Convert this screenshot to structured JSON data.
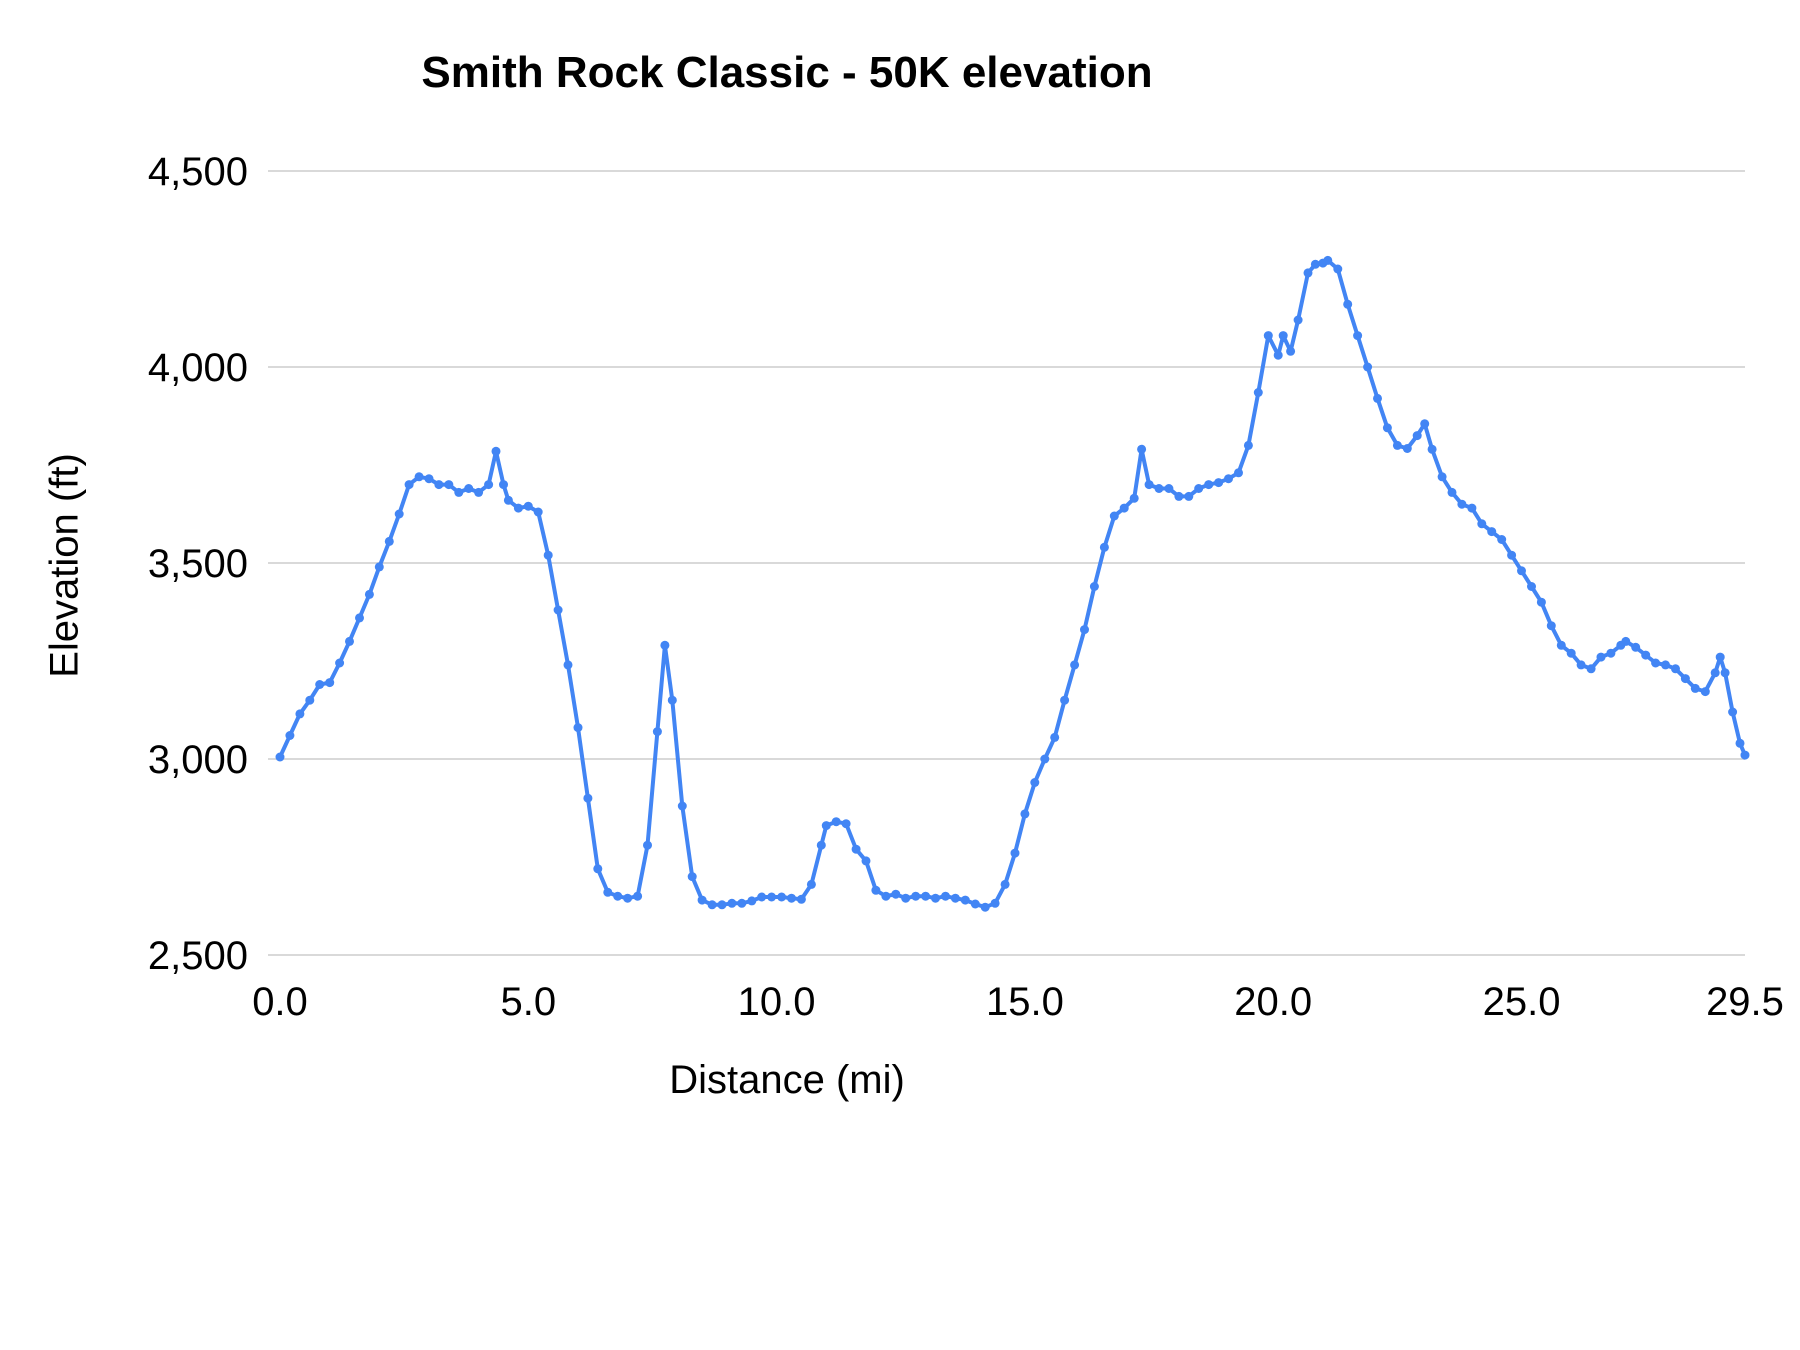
{
  "chart": {
    "title": "Smith Rock Classic - 50K elevation",
    "xlabel": "Distance (mi)",
    "ylabel": "Elevation (ft)"
  },
  "chart_data": {
    "type": "line",
    "title": "Smith Rock Classic - 50K elevation",
    "xlabel": "Distance (mi)",
    "ylabel": "Elevation (ft)",
    "xlim": [
      0,
      29.5
    ],
    "ylim": [
      2500,
      4500
    ],
    "grid": "horizontal",
    "grid_color": "#d9d9d9",
    "background_color": "#ffffff",
    "x_ticks": [
      0,
      5,
      10,
      15,
      20,
      25,
      29.5
    ],
    "x_tick_labels": [
      "0.0",
      "5.0",
      "10.0",
      "15.0",
      "20.0",
      "25.0",
      "29.5"
    ],
    "y_ticks": [
      2500,
      3000,
      3500,
      4000,
      4500
    ],
    "y_tick_labels": [
      "2,500",
      "3,000",
      "3,500",
      "4,000",
      "4,500"
    ],
    "series": [
      {
        "name": "elevation",
        "color": "#4285f4",
        "marker": "circle",
        "x": [
          0.0,
          0.2,
          0.4,
          0.6,
          0.8,
          1.0,
          1.2,
          1.4,
          1.6,
          1.8,
          2.0,
          2.2,
          2.4,
          2.6,
          2.8,
          3.0,
          3.2,
          3.4,
          3.6,
          3.8,
          4.0,
          4.2,
          4.35,
          4.5,
          4.6,
          4.8,
          5.0,
          5.2,
          5.4,
          5.6,
          5.8,
          6.0,
          6.2,
          6.4,
          6.6,
          6.8,
          7.0,
          7.2,
          7.4,
          7.6,
          7.75,
          7.9,
          8.1,
          8.3,
          8.5,
          8.7,
          8.9,
          9.1,
          9.3,
          9.5,
          9.7,
          9.9,
          10.1,
          10.3,
          10.5,
          10.7,
          10.9,
          11.0,
          11.2,
          11.4,
          11.6,
          11.8,
          12.0,
          12.2,
          12.4,
          12.6,
          12.8,
          13.0,
          13.2,
          13.4,
          13.6,
          13.8,
          14.0,
          14.2,
          14.4,
          14.6,
          14.8,
          15.0,
          15.2,
          15.4,
          15.6,
          15.8,
          16.0,
          16.2,
          16.4,
          16.6,
          16.8,
          17.0,
          17.2,
          17.35,
          17.5,
          17.7,
          17.9,
          18.1,
          18.3,
          18.5,
          18.7,
          18.9,
          19.1,
          19.3,
          19.5,
          19.7,
          19.9,
          20.1,
          20.2,
          20.35,
          20.5,
          20.7,
          20.85,
          21.0,
          21.1,
          21.3,
          21.5,
          21.7,
          21.9,
          22.1,
          22.3,
          22.5,
          22.7,
          22.9,
          23.05,
          23.2,
          23.4,
          23.6,
          23.8,
          24.0,
          24.2,
          24.4,
          24.6,
          24.8,
          25.0,
          25.2,
          25.4,
          25.6,
          25.8,
          26.0,
          26.2,
          26.4,
          26.6,
          26.8,
          27.0,
          27.1,
          27.3,
          27.5,
          27.7,
          27.9,
          28.1,
          28.3,
          28.5,
          28.7,
          28.9,
          29.0,
          29.1,
          29.25,
          29.4,
          29.5
        ],
        "y": [
          3005,
          3060,
          3115,
          3150,
          3190,
          3195,
          3245,
          3300,
          3360,
          3420,
          3490,
          3555,
          3625,
          3700,
          3720,
          3715,
          3700,
          3700,
          3680,
          3690,
          3680,
          3700,
          3785,
          3700,
          3660,
          3640,
          3645,
          3630,
          3520,
          3380,
          3240,
          3080,
          2900,
          2720,
          2660,
          2650,
          2645,
          2650,
          2780,
          3070,
          3290,
          3150,
          2880,
          2700,
          2640,
          2628,
          2628,
          2632,
          2632,
          2638,
          2648,
          2648,
          2648,
          2645,
          2642,
          2680,
          2780,
          2830,
          2840,
          2835,
          2770,
          2740,
          2665,
          2650,
          2655,
          2645,
          2650,
          2650,
          2645,
          2650,
          2645,
          2640,
          2630,
          2622,
          2632,
          2680,
          2760,
          2860,
          2940,
          3000,
          3055,
          3150,
          3240,
          3330,
          3440,
          3540,
          3620,
          3640,
          3665,
          3790,
          3700,
          3690,
          3690,
          3670,
          3670,
          3690,
          3700,
          3705,
          3715,
          3730,
          3800,
          3935,
          4080,
          4030,
          4080,
          4040,
          4120,
          4240,
          4262,
          4265,
          4272,
          4250,
          4160,
          4080,
          4000,
          3920,
          3845,
          3800,
          3792,
          3825,
          3855,
          3790,
          3720,
          3680,
          3650,
          3640,
          3600,
          3580,
          3560,
          3520,
          3480,
          3440,
          3400,
          3340,
          3290,
          3270,
          3240,
          3230,
          3260,
          3270,
          3290,
          3300,
          3285,
          3265,
          3245,
          3240,
          3230,
          3205,
          3180,
          3172,
          3220,
          3260,
          3220,
          3120,
          3040,
          3010
        ]
      }
    ]
  }
}
